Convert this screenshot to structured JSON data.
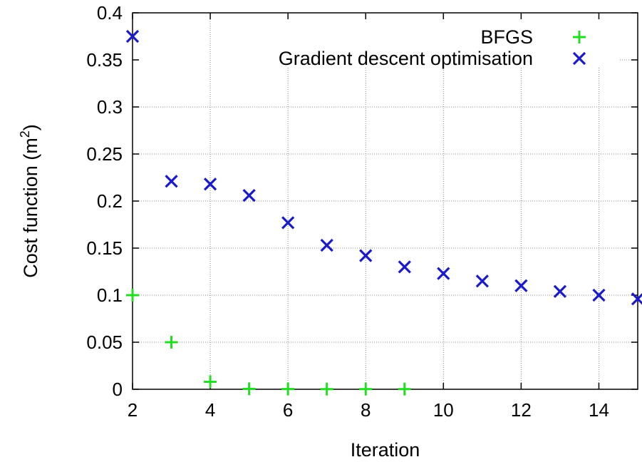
{
  "chart_data": {
    "type": "scatter",
    "xlabel": "Iteration",
    "ylabel": "Cost function (m",
    "ylabel_superscript": "2",
    "ylabel_suffix": ")",
    "xlim": [
      2,
      15
    ],
    "ylim": [
      0,
      0.4
    ],
    "x_ticks": [
      2,
      4,
      6,
      8,
      10,
      12,
      14
    ],
    "y_ticks": [
      0,
      0.05,
      0.1,
      0.15,
      0.2,
      0.25,
      0.3,
      0.35,
      0.4
    ],
    "x_tick_labels": [
      "2",
      "4",
      "6",
      "8",
      "10",
      "12",
      "14"
    ],
    "y_tick_labels": [
      "0",
      "0.05",
      "0.1",
      "0.15",
      "0.2",
      "0.25",
      "0.3",
      "0.35",
      "0.4"
    ],
    "grid": true,
    "legend_position": "top-right",
    "series": [
      {
        "name": "BFGS",
        "marker": "plus",
        "color": "#22dd22",
        "x": [
          2,
          3,
          4,
          5,
          6,
          7,
          8,
          9
        ],
        "y": [
          0.1,
          0.05,
          0.008,
          0.0005,
          0.0003,
          0.0002,
          0.0002,
          0.0002
        ]
      },
      {
        "name": "Gradient descent optimisation",
        "marker": "cross",
        "color": "#1a1acc",
        "x": [
          2,
          3,
          4,
          5,
          6,
          7,
          8,
          9,
          10,
          11,
          12,
          13,
          14,
          15
        ],
        "y": [
          0.375,
          0.221,
          0.218,
          0.206,
          0.177,
          0.153,
          0.142,
          0.13,
          0.123,
          0.115,
          0.11,
          0.104,
          0.1,
          0.096
        ]
      }
    ]
  }
}
